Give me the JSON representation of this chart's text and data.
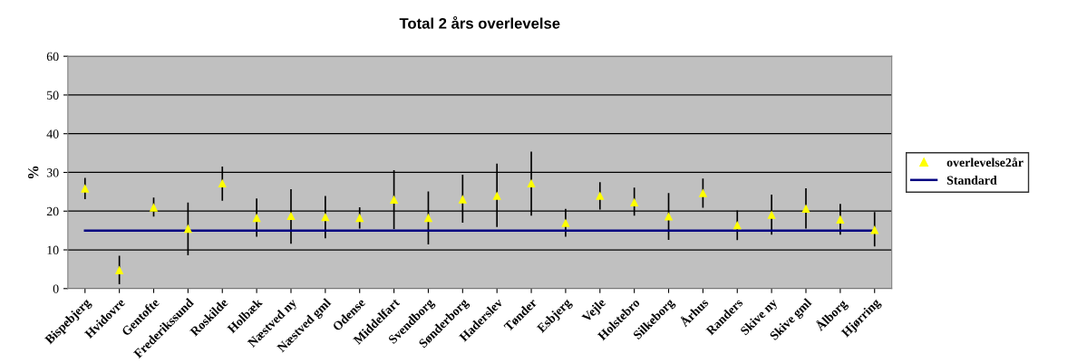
{
  "chart_data": {
    "type": "scatter",
    "title": "Total 2 års overlevelse",
    "ylabel": "%",
    "categories": [
      "Bispebjerg",
      "Hvidovre",
      "Gentofte",
      "Frederikssund",
      "Roskilde",
      "Holbæk",
      "Næstved ny",
      "Næstved gml",
      "Odense",
      "Middelfart",
      "Svendborg",
      "Sønderborg",
      "Haderslev",
      "Tønder",
      "Esbjerg",
      "Vejle",
      "Holstebro",
      "Silkeborg",
      "Århus",
      "Randers",
      "Skive ny",
      "Skive gml",
      "Ålborg",
      "Hjørring"
    ],
    "series": [
      {
        "name": "overlevelse2år",
        "color": "#ffff00",
        "marker": "triangle",
        "values": [
          25.9,
          4.8,
          21.0,
          15.5,
          27.2,
          18.3,
          18.8,
          18.5,
          18.3,
          23.0,
          18.3,
          23.1,
          24.0,
          27.2,
          17.0,
          24.0,
          22.3,
          18.7,
          24.7,
          16.4,
          19.1,
          20.7,
          17.9,
          15.2
        ],
        "errors": [
          [
            23.3,
            28.4
          ],
          [
            1.3,
            8.3
          ],
          [
            18.8,
            23.3
          ],
          [
            8.8,
            22.0
          ],
          [
            22.9,
            31.3
          ],
          [
            13.6,
            23.1
          ],
          [
            11.8,
            25.5
          ],
          [
            13.2,
            23.7
          ],
          [
            15.7,
            20.8
          ],
          [
            15.6,
            30.4
          ],
          [
            11.6,
            24.9
          ],
          [
            17.2,
            29.2
          ],
          [
            16.1,
            32.1
          ],
          [
            19.0,
            35.2
          ],
          [
            13.6,
            20.4
          ],
          [
            20.6,
            27.3
          ],
          [
            19.0,
            25.9
          ],
          [
            12.8,
            24.5
          ],
          [
            21.1,
            28.2
          ],
          [
            12.7,
            20.0
          ],
          [
            14.1,
            24.1
          ],
          [
            15.7,
            25.7
          ],
          [
            14.1,
            21.7
          ],
          [
            11.1,
            19.6
          ]
        ]
      },
      {
        "name": "Standard",
        "type": "line",
        "color": "#000080",
        "marker": "none",
        "line_style": "solid",
        "values": [
          15,
          15,
          15,
          15,
          15,
          15,
          15,
          15,
          15,
          15,
          15,
          15,
          15,
          15,
          15,
          15,
          15,
          15,
          15,
          15,
          15,
          15,
          15,
          15
        ]
      }
    ],
    "ylim": [
      0,
      60
    ],
    "yticks": [
      0,
      10,
      20,
      30,
      40,
      50,
      60
    ],
    "grid": "y",
    "legend": "right"
  }
}
